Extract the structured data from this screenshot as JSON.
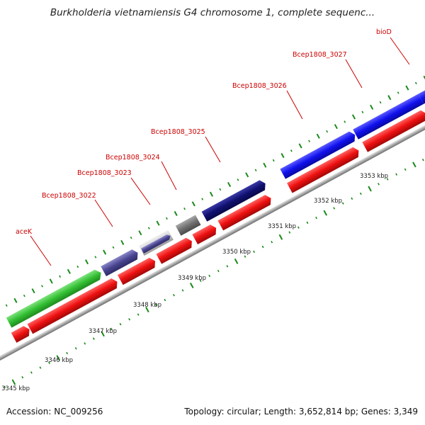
{
  "title": "Burkholderia vietnamiensis G4 chromosome 1, complete sequenc...",
  "footer": {
    "accession": "Accession: NC_009256",
    "summary": "Topology: circular; Length: 3,652,814 bp; Genes: 3,349"
  },
  "colors": {
    "forward_cds": "#1010ee",
    "reverse_cds": "#ee1010",
    "backbone": "#a8a8a8",
    "ticks": "#1a8a1a",
    "label_text": "#cc0000",
    "tick_text": "#222222"
  },
  "labels": [
    {
      "text": "bioD",
      "color": "#cc0000"
    },
    {
      "text": "Bcep1808_3027",
      "color": "#cc0000"
    },
    {
      "text": "Bcep1808_3026",
      "color": "#cc0000"
    },
    {
      "text": "Bcep1808_3025",
      "color": "#cc0000"
    },
    {
      "text": "Bcep1808_3024",
      "color": "#cc0000"
    },
    {
      "text": "Bcep1808_3023",
      "color": "#cc0000"
    },
    {
      "text": "Bcep1808_3022",
      "color": "#cc0000"
    },
    {
      "text": "aceK",
      "color": "#cc0000"
    }
  ],
  "tick_labels": [
    "3345 kbp",
    "3346 kbp",
    "3347 kbp",
    "3348 kbp",
    "3349 kbp",
    "3350 kbp",
    "3351 kbp",
    "3352 kbp",
    "3353 kbp"
  ]
}
